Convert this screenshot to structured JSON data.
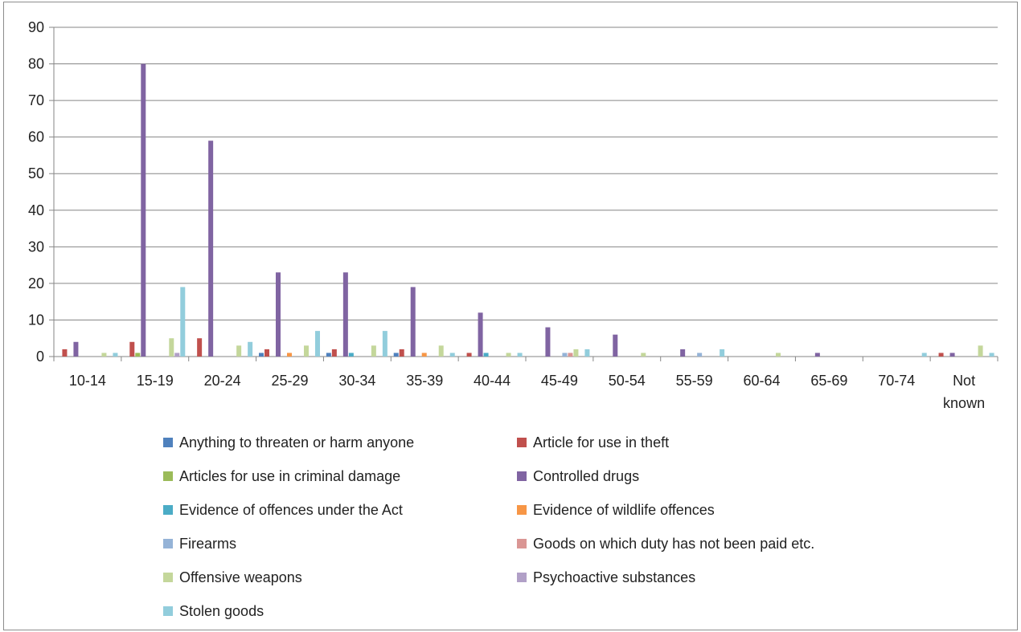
{
  "chart_data": {
    "type": "bar",
    "title": "",
    "xlabel": "",
    "ylabel": "",
    "ylim": [
      0,
      90
    ],
    "yticks": [
      "0",
      "10",
      "20",
      "30",
      "40",
      "50",
      "60",
      "70",
      "80",
      "90"
    ],
    "grid": true,
    "legend_position": "bottom",
    "categories": [
      "10-14",
      "15-19",
      "20-24",
      "25-29",
      "30-34",
      "35-39",
      "40-44",
      "45-49",
      "50-54",
      "55-59",
      "60-64",
      "65-69",
      "70-74",
      "Not known"
    ],
    "series": [
      {
        "name": "Anything to threaten or harm anyone",
        "color": "#4F81BD",
        "values": [
          0,
          0,
          0,
          1,
          1,
          1,
          0,
          0,
          0,
          0,
          0,
          0,
          0,
          0
        ]
      },
      {
        "name": "Article for use in theft",
        "color": "#C0504D",
        "values": [
          2,
          4,
          5,
          2,
          2,
          2,
          1,
          0,
          0,
          0,
          0,
          0,
          0,
          1
        ]
      },
      {
        "name": "Articles for use in criminal damage",
        "color": "#9BBB59",
        "values": [
          0,
          1,
          0,
          0,
          0,
          0,
          0,
          0,
          0,
          0,
          0,
          0,
          0,
          0
        ]
      },
      {
        "name": "Controlled drugs",
        "color": "#8064A2",
        "values": [
          4,
          80,
          59,
          23,
          23,
          19,
          12,
          8,
          6,
          2,
          0,
          1,
          0,
          1
        ]
      },
      {
        "name": "Evidence of offences under the Act",
        "color": "#4BACC6",
        "values": [
          0,
          0,
          0,
          0,
          1,
          0,
          1,
          0,
          0,
          0,
          0,
          0,
          0,
          0
        ]
      },
      {
        "name": "Evidence of wildlife offences",
        "color": "#F79646",
        "values": [
          0,
          0,
          0,
          1,
          0,
          1,
          0,
          0,
          0,
          0,
          0,
          0,
          0,
          0
        ]
      },
      {
        "name": "Firearms",
        "color": "#95B3D7",
        "values": [
          0,
          0,
          0,
          0,
          0,
          0,
          0,
          1,
          0,
          1,
          0,
          0,
          0,
          0
        ]
      },
      {
        "name": "Goods on which duty has not been paid etc.",
        "color": "#DA9694",
        "values": [
          0,
          0,
          0,
          0,
          0,
          0,
          0,
          1,
          0,
          0,
          0,
          0,
          0,
          0
        ]
      },
      {
        "name": "Offensive weapons",
        "color": "#C4D79B",
        "values": [
          1,
          5,
          3,
          3,
          3,
          3,
          1,
          2,
          1,
          0,
          1,
          0,
          0,
          3
        ]
      },
      {
        "name": "Psychoactive substances",
        "color": "#B1A0C7",
        "values": [
          0,
          1,
          0,
          0,
          0,
          0,
          0,
          0,
          0,
          0,
          0,
          0,
          0,
          0
        ]
      },
      {
        "name": "Stolen goods",
        "color": "#92CDDC",
        "values": [
          1,
          19,
          4,
          7,
          7,
          1,
          1,
          2,
          0,
          2,
          0,
          0,
          1,
          1
        ]
      }
    ]
  }
}
